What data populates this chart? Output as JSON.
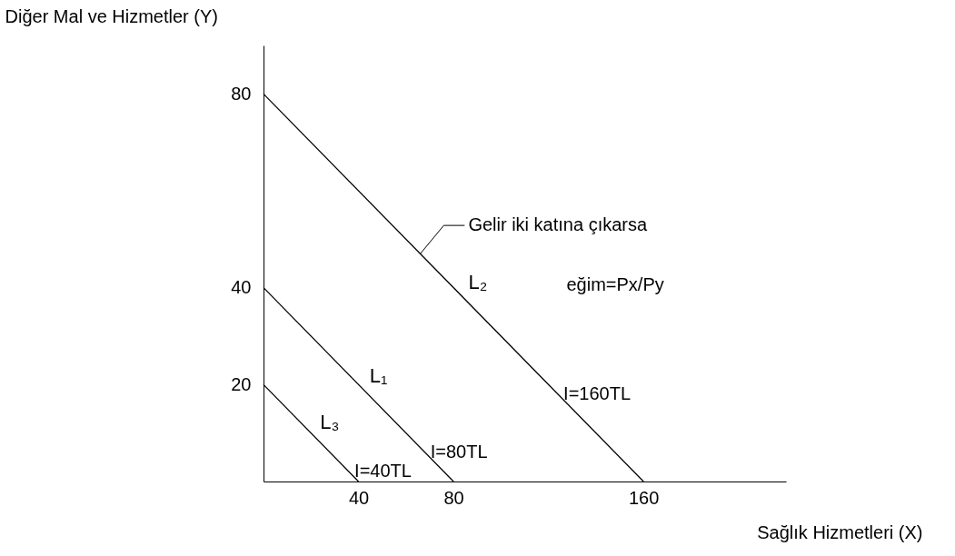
{
  "chart_data": {
    "type": "line",
    "xlabel": "Sağlık Hizmetleri (X)",
    "ylabel": "Diğer Mal ve Hizmetler (Y)",
    "xlim": [
      0,
      220
    ],
    "ylim": [
      0,
      90
    ],
    "xticks": [
      40,
      80,
      160
    ],
    "yticks": [
      20,
      40,
      80
    ],
    "grid": false,
    "marker": "none",
    "line_style": "solid",
    "series": [
      {
        "name": "L₂",
        "color": "#000000",
        "x": [
          0,
          160
        ],
        "values": [
          80,
          0
        ]
      },
      {
        "name": "L₁",
        "color": "#000000",
        "x": [
          0,
          80
        ],
        "values": [
          40,
          0
        ]
      },
      {
        "name": "L₃",
        "color": "#000000",
        "x": [
          0,
          40
        ],
        "values": [
          20,
          0
        ]
      }
    ],
    "annotations": [
      {
        "text": "Gelir iki katına çıkarsa",
        "x": 66,
        "y": 47
      },
      {
        "text": "I=160TL",
        "x": 124,
        "y": 18
      },
      {
        "text": "I=80TL",
        "x": 68,
        "y": 6
      },
      {
        "text": "I=40TL",
        "x": 36,
        "y": 2
      },
      "eğim=Px/Py"
    ]
  }
}
